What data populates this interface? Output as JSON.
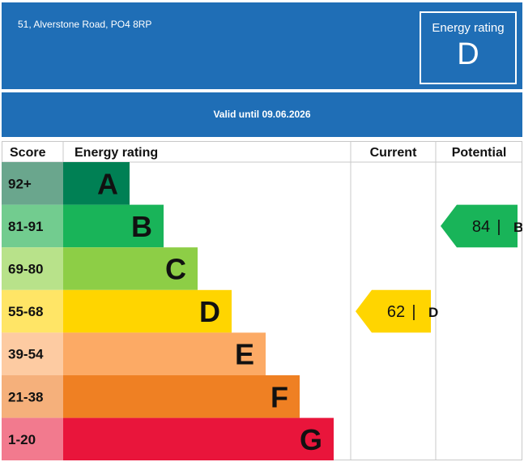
{
  "header": {
    "address": "51, Alverstone Road, PO4 8RP",
    "rating_label": "Energy rating",
    "rating_value": "D",
    "valid_until": "Valid until 09.06.2026"
  },
  "chart_data": {
    "type": "bar",
    "columns": [
      "Score",
      "Energy rating",
      "Current",
      "Potential"
    ],
    "bands": [
      {
        "range": "92+",
        "letter": "A",
        "color": "#008054",
        "score_bg": "#6aa68d"
      },
      {
        "range": "81-91",
        "letter": "B",
        "color": "#19b459",
        "score_bg": "#72cc8f"
      },
      {
        "range": "69-80",
        "letter": "C",
        "color": "#8dce46",
        "score_bg": "#b8e28a"
      },
      {
        "range": "55-68",
        "letter": "D",
        "color": "#ffd500",
        "score_bg": "#ffe566"
      },
      {
        "range": "39-54",
        "letter": "E",
        "color": "#fcaa65",
        "score_bg": "#fdcba2"
      },
      {
        "range": "21-38",
        "letter": "F",
        "color": "#ef8023",
        "score_bg": "#f5b07b"
      },
      {
        "range": "1-20",
        "letter": "G",
        "color": "#e9153b",
        "score_bg": "#f27a8e"
      }
    ],
    "current": {
      "value": 62,
      "letter": "D",
      "color": "#ffd500"
    },
    "potential": {
      "value": 84,
      "letter": "B",
      "color": "#19b459"
    }
  }
}
